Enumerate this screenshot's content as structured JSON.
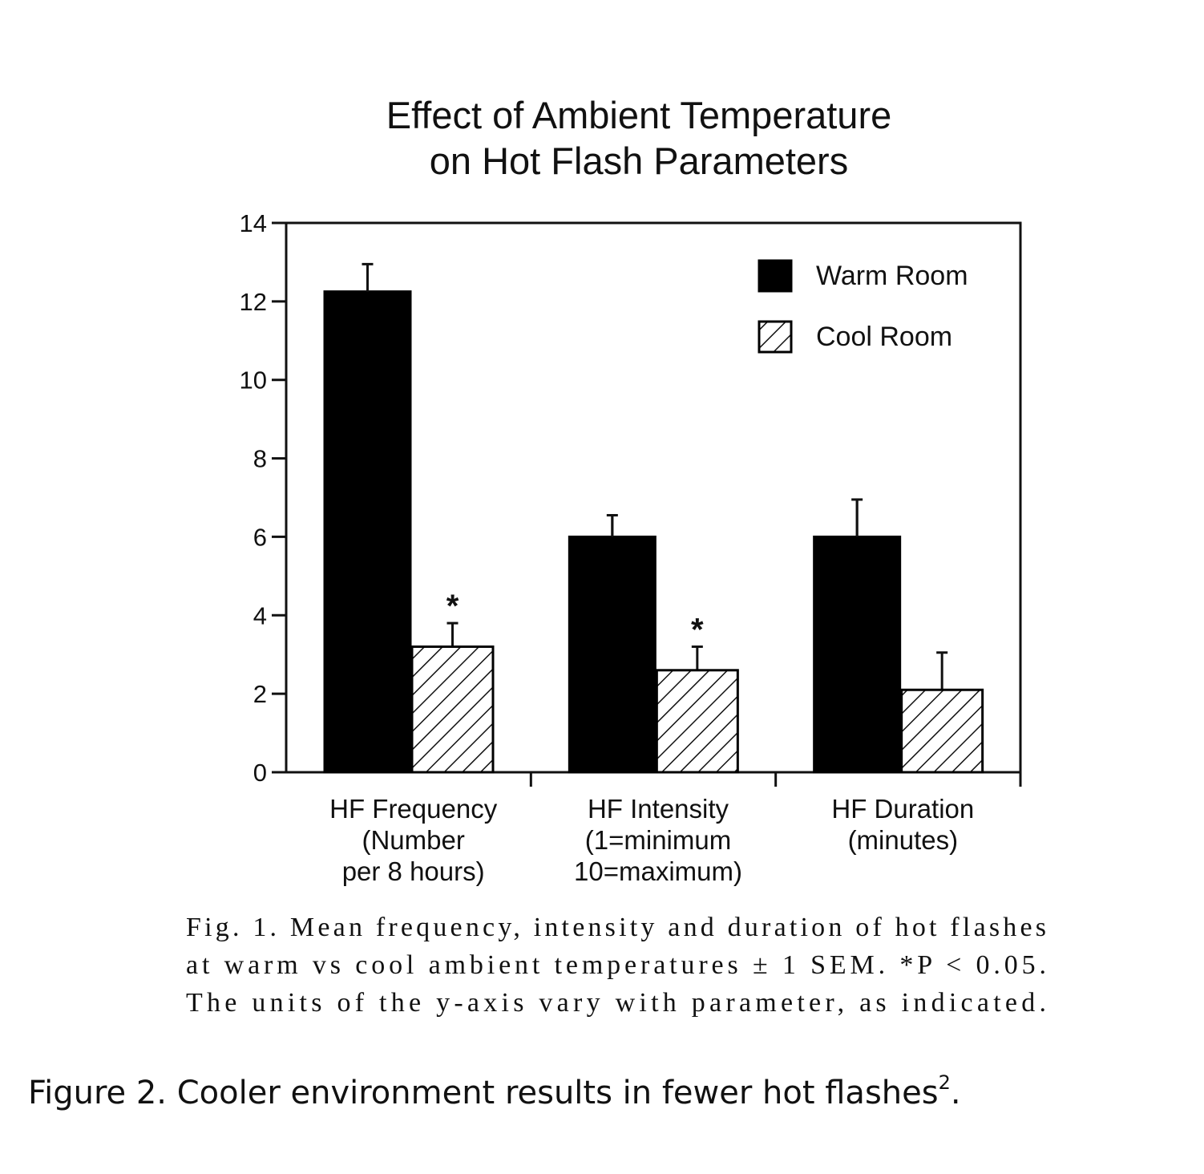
{
  "chart_data": {
    "type": "bar",
    "title": [
      "Effect of Ambient Temperature",
      "on Hot Flash Parameters"
    ],
    "categories": [
      [
        "HF Frequency",
        "(Number",
        "per 8 hours)"
      ],
      [
        "HF Intensity",
        "(1=minimum",
        "10=maximum)"
      ],
      [
        "HF Duration",
        "(minutes)"
      ]
    ],
    "series": [
      {
        "name": "Warm Room",
        "color": "#000000",
        "pattern": "solid",
        "values": [
          12.25,
          6.0,
          6.0
        ],
        "errors": [
          0.7,
          0.55,
          0.95
        ],
        "markers": [
          null,
          null,
          null
        ]
      },
      {
        "name": "Cool Room",
        "color": "#000000",
        "pattern": "hatch",
        "values": [
          3.2,
          2.6,
          2.1
        ],
        "errors": [
          0.6,
          0.6,
          0.95
        ],
        "markers": [
          "*",
          "*",
          null
        ]
      }
    ],
    "ylim": [
      0,
      14
    ],
    "yticks": [
      0,
      2,
      4,
      6,
      8,
      10,
      12,
      14
    ],
    "grid": false,
    "legend": "top-right",
    "caption": [
      "Fig. 1. Mean frequency, intensity and duration of hot flashes",
      "at warm vs cool ambient temperatures ± 1 SEM. *P < 0.05.",
      "The units of the y-axis vary with parameter, as indicated."
    ]
  },
  "figure_caption": {
    "text": "Figure 2. Cooler environment results in fewer hot flashes",
    "sup": "2",
    "end": "."
  }
}
